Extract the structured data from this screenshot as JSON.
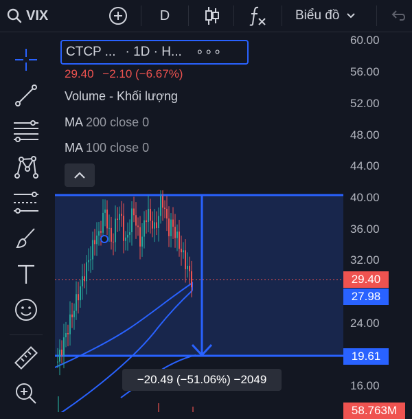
{
  "topbar": {
    "symbol": "VIX",
    "timeframe": "D",
    "chart_type_label": "Biểu đồ"
  },
  "legend": {
    "title_short": "CTCP ...",
    "interval": "· 1D · H...",
    "more": "∘∘∘",
    "price": "29.40",
    "change": "−2.10 (−6.67%)",
    "volume_label": "Volume - Khối lượng",
    "ma200_name": "MA",
    "ma200_params": "200 close 0",
    "ma100_name": "MA",
    "ma100_params": "100 close 0"
  },
  "axis": {
    "ticks": [
      "60.00",
      "56.00",
      "52.00",
      "48.00",
      "44.00",
      "40.00",
      "36.00",
      "32.00",
      "24.00",
      "16.00"
    ],
    "last_price": "29.40",
    "ma_price": "27.98",
    "target_price": "19.61",
    "volume_tag": "58.763M"
  },
  "measure": {
    "text": "−20.49 (−51.06%) −2049"
  },
  "colors": {
    "background": "#131722",
    "up": "#26a69a",
    "down": "#ef5350",
    "accent": "#2962ff",
    "ma_line": "#2962ff"
  },
  "icons": {
    "sidebar": [
      "crosshair-icon",
      "trendline-icon",
      "fib-lines-icon",
      "pattern-icon",
      "prediction-icon",
      "brush-icon",
      "text-icon",
      "emoji-icon",
      "ruler-icon",
      "zoom-in-icon"
    ]
  }
}
